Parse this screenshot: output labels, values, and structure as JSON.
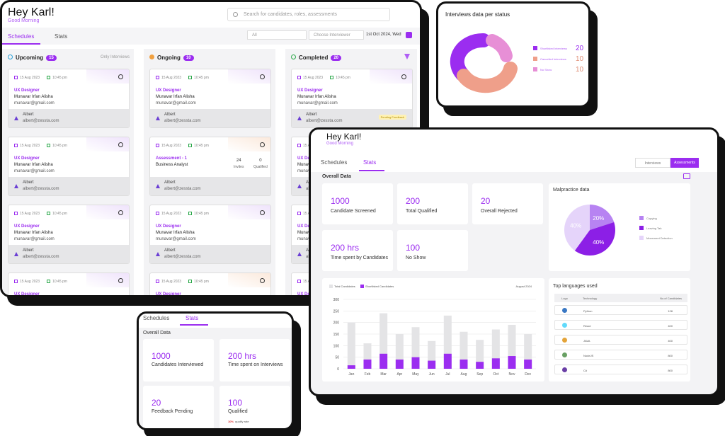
{
  "main": {
    "greeting": "Hey Karl!",
    "subgreeting": "Good Morning",
    "search_placeholder": "Search for candidates, roles, assessments",
    "tabs": [
      "Schedules",
      "Stats"
    ],
    "filter_all": "All",
    "filter_interviewer": "Choose Interviewer",
    "date": "1st Oct 2024, Wed",
    "columns": [
      {
        "title": "Upcoming",
        "count": "15",
        "right": "Only Interviews"
      },
      {
        "title": "Ongoing",
        "count": "10",
        "right": ""
      },
      {
        "title": "Completed",
        "count": "20",
        "right": ""
      }
    ],
    "card": {
      "date": "15 Aug 2023",
      "time": "10:45 pm",
      "role": "UX Designer",
      "name": "Munavar Irfan Alisha",
      "email": "munavar@gmail.com",
      "interviewer": "Albert",
      "interviewer_email": "albert@zessta.com"
    },
    "assessment": {
      "title": "Assessment - 1",
      "subtitle": "Business Analyst",
      "invites": "24",
      "invites_label": "Invites",
      "qualified": "0",
      "qualified_label": "Qualified"
    },
    "pending_label": "Pending Feedback"
  },
  "status": {
    "title": "Interviews data per status",
    "legend": [
      {
        "label": "Shortlisted Interviews",
        "value": "20",
        "color": "#9b2df0"
      },
      {
        "label": "Cancelled Interviews",
        "value": "10",
        "color": "#ef9f8a"
      },
      {
        "label": "No Show",
        "value": "10",
        "color": "#e78fd6"
      }
    ]
  },
  "stats": {
    "greeting": "Hey Karl!",
    "subgreeting": "Good Morning",
    "tabs": [
      "Schedules",
      "Stats"
    ],
    "toggle": [
      "Interviews",
      "Assessments"
    ],
    "overall": "Overall Data",
    "kpis": [
      {
        "value": "1000",
        "label": "Candidate Screened"
      },
      {
        "value": "200",
        "label": "Total Qualified"
      },
      {
        "value": "20",
        "label": "Overall Rejected"
      },
      {
        "value": "200 hrs",
        "label": "Time spent by Candidates"
      },
      {
        "value": "100",
        "label": "No Show"
      }
    ],
    "malpractice": {
      "title": "Malpractice data",
      "legend": [
        "Copying",
        "Leaving Tab",
        "Movement Detection"
      ],
      "slices": [
        {
          "label": "20%",
          "value": 20,
          "color": "#b783f2"
        },
        {
          "label": "40%",
          "value": 40,
          "color": "#8c1fe6"
        },
        {
          "label": "40%",
          "value": 40,
          "color": "#e5d4fa"
        }
      ]
    },
    "bar_legend": [
      "Total Candidates",
      "Shortlisted Candidates"
    ],
    "period": "August 2024",
    "languages": {
      "title": "Top languages used",
      "headers": [
        "Logo",
        "Technology",
        "No.of Candidates"
      ],
      "rows": [
        {
          "name": "Python",
          "count": "128",
          "color": "#3a78c4"
        },
        {
          "name": "React",
          "count": "400",
          "color": "#61dafb"
        },
        {
          "name": "JAVA",
          "count": "400",
          "color": "#e4a43a"
        },
        {
          "name": "NodeJS",
          "count": "800",
          "color": "#68a063"
        },
        {
          "name": "C#",
          "count": "800",
          "color": "#6a3fa6"
        }
      ]
    }
  },
  "small": {
    "tabs": [
      "Schedules",
      "Stats"
    ],
    "overall": "Overall Data",
    "kpis": [
      {
        "value": "1000",
        "label": "Candidates Interviewed"
      },
      {
        "value": "200 hrs",
        "label": "Time spent on Interviews"
      },
      {
        "value": "20",
        "label": "Feedback Pending"
      },
      {
        "value": "100",
        "label": "Qualified"
      }
    ],
    "qualify_pct": "10%",
    "qualify_text": "qualify rate"
  },
  "chart_data": {
    "type": "bar",
    "categories": [
      "Jan",
      "Feb",
      "Mar",
      "Apr",
      "May",
      "Jun",
      "Jul",
      "Aug",
      "Sep",
      "Oct",
      "Nov",
      "Dec"
    ],
    "series": [
      {
        "name": "Total Candidates",
        "values": [
          200,
          110,
          240,
          150,
          180,
          120,
          230,
          160,
          125,
          170,
          190,
          150
        ],
        "color": "#e4e4e6"
      },
      {
        "name": "Shortlisted Candidates",
        "values": [
          15,
          40,
          65,
          40,
          50,
          35,
          65,
          40,
          30,
          45,
          55,
          40
        ],
        "color": "#9b2df0"
      }
    ],
    "yticks": [
      0,
      50,
      100,
      150,
      200,
      250,
      300
    ],
    "ylim": [
      0,
      300
    ],
    "legend": "top-left"
  }
}
